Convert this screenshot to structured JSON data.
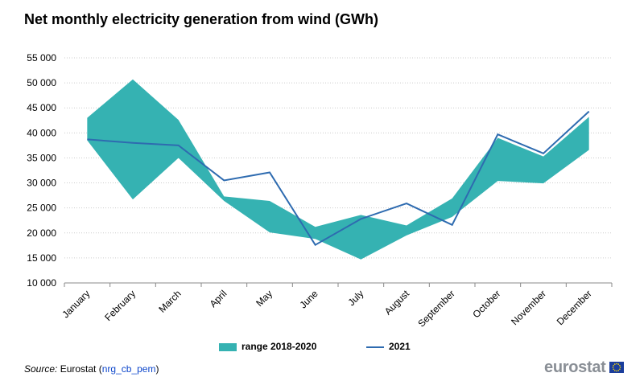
{
  "title": "Net monthly electricity generation from wind (GWh)",
  "legend": {
    "range_label": "range 2018-2020",
    "line_label": "2021"
  },
  "source": {
    "label": "Source:",
    "org": "Eurostat",
    "open_paren": "(",
    "code": "nrg_cb_pem",
    "close_paren": ")"
  },
  "logo": {
    "text": "eurostat"
  },
  "colors": {
    "range": "#35b2b2",
    "line": "#2e6bb0",
    "grid": "#cccccc",
    "axis": "#888888"
  },
  "chart_data": {
    "type": "area",
    "title": "Net monthly electricity generation from wind (GWh)",
    "categories": [
      "January",
      "February",
      "March",
      "April",
      "May",
      "June",
      "July",
      "August",
      "September",
      "October",
      "November",
      "December"
    ],
    "y_ticks": [
      "10 000",
      "15 000",
      "20 000",
      "25 000",
      "30 000",
      "35 000",
      "40 000",
      "45 000",
      "50 000",
      "55 000"
    ],
    "y_tick_values": [
      10000,
      15000,
      20000,
      25000,
      30000,
      35000,
      40000,
      45000,
      50000,
      55000
    ],
    "ylim": [
      10000,
      55000
    ],
    "grid": true,
    "legend_position": "bottom",
    "series": [
      {
        "name": "range 2018-2020",
        "type": "range",
        "high": [
          43000,
          50700,
          42600,
          27300,
          26400,
          21200,
          23600,
          21500,
          26900,
          39000,
          35300,
          43200
        ],
        "low": [
          38500,
          26700,
          35000,
          26400,
          20100,
          18800,
          14700,
          19500,
          23200,
          30400,
          29900,
          36600
        ]
      },
      {
        "name": "2021",
        "type": "line",
        "values": [
          38700,
          38000,
          37500,
          30500,
          32100,
          17600,
          22800,
          25900,
          21600,
          39700,
          35900,
          44300
        ]
      }
    ]
  }
}
